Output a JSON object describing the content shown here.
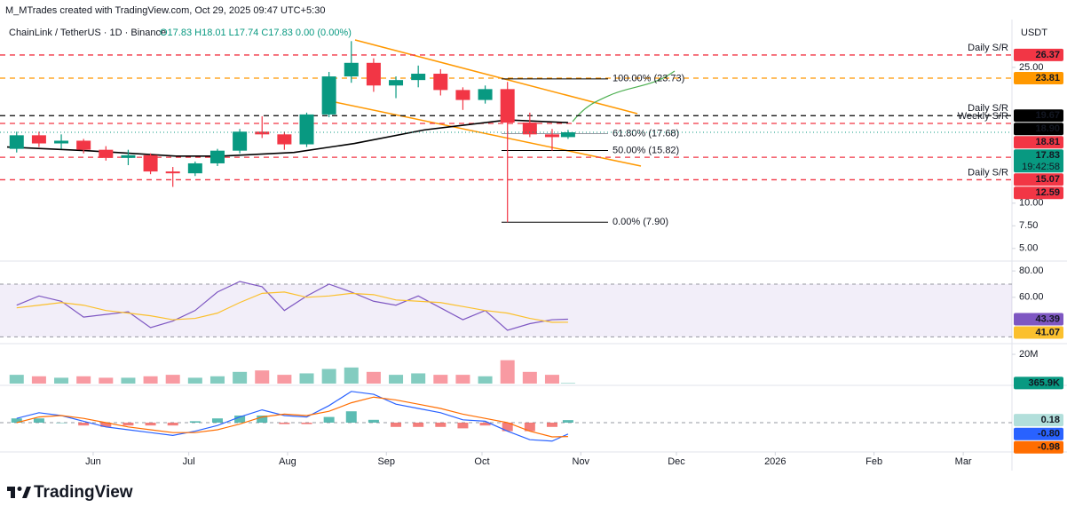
{
  "header": {
    "attribution": "M_MTrades created with TradingView.com, Oct 29, 2025 09:47 UTC+5:30",
    "symbol": "ChainLink / TetherUS · 1D · Binance",
    "ohlc": "O17.83 H18.01 L17.74 C17.83 0.00 (0.00%)",
    "currency": "USDT"
  },
  "footer": {
    "brand": "TradingView"
  },
  "chart_data": [
    {
      "type": "candlestick",
      "xlim": [
        0,
        315
      ],
      "xticks": [
        {
          "value": 27,
          "label": "Jun"
        },
        {
          "value": 57,
          "label": "Jul"
        },
        {
          "value": 88,
          "label": "Aug"
        },
        {
          "value": 119,
          "label": "Sep"
        },
        {
          "value": 149,
          "label": "Oct"
        },
        {
          "value": 180,
          "label": "Nov"
        },
        {
          "value": 210,
          "label": "Dec"
        },
        {
          "value": 241,
          "label": "2026"
        },
        {
          "value": 272,
          "label": "Feb"
        },
        {
          "value": 300,
          "label": "Mar"
        }
      ],
      "x": [
        3,
        10,
        17,
        24,
        31,
        38,
        45,
        52,
        59,
        66,
        73,
        80,
        87,
        94,
        101,
        108,
        115,
        122,
        129,
        136,
        143,
        150,
        157,
        164,
        171,
        176
      ],
      "open": [
        16.0,
        17.5,
        16.6,
        16.9,
        15.9,
        15.0,
        15.3,
        13.5,
        13.3,
        14.4,
        15.8,
        17.9,
        17.6,
        16.5,
        19.8,
        24.0,
        25.5,
        23.0,
        23.6,
        24.3,
        22.5,
        21.4,
        22.6,
        18.9,
        17.6,
        17.3
      ],
      "high": [
        17.9,
        17.9,
        17.6,
        17.1,
        16.3,
        15.9,
        15.5,
        14.0,
        14.6,
        16.0,
        18.2,
        19.6,
        17.9,
        20.0,
        24.5,
        27.9,
        26.0,
        24.0,
        25.2,
        24.8,
        22.8,
        23.0,
        23.4,
        20.0,
        18.2,
        18.1
      ],
      "low": [
        15.6,
        16.2,
        16.0,
        15.5,
        14.7,
        14.2,
        13.2,
        11.8,
        13.0,
        14.1,
        15.5,
        17.2,
        15.9,
        16.2,
        19.5,
        23.3,
        22.3,
        21.6,
        22.8,
        21.9,
        20.3,
        21.0,
        7.9,
        17.3,
        15.8,
        17.1
      ],
      "close": [
        17.5,
        16.6,
        16.9,
        15.9,
        15.0,
        15.3,
        13.5,
        13.3,
        14.4,
        15.8,
        17.9,
        17.6,
        16.5,
        19.8,
        24.0,
        25.5,
        23.0,
        23.6,
        24.3,
        22.5,
        21.4,
        22.6,
        18.9,
        17.6,
        17.3,
        17.83
      ],
      "countdown": "19:42:58",
      "up_color": "#089981",
      "down_color": "#f23645",
      "ylim": [
        4,
        29.5
      ],
      "yticks": [
        {
          "value": 5,
          "label": "5.00"
        },
        {
          "value": 7.5,
          "label": "7.50"
        },
        {
          "value": 10,
          "label": "10.00"
        },
        {
          "value": 25,
          "label": "25.00"
        }
      ],
      "moving_average": {
        "color": "#000000",
        "x": [
          0,
          25,
          53,
          67,
          90,
          109,
          131,
          157,
          176
        ],
        "values": [
          16.2,
          15.8,
          15.2,
          15.2,
          15.6,
          16.6,
          18.1,
          19.2,
          18.9
        ],
        "value_labels": [
          null,
          null,
          null,
          null,
          null,
          null,
          null,
          null,
          "18.90"
        ]
      },
      "levels": [
        {
          "label": "Daily S/R",
          "value": 26.37,
          "color": "#f23645"
        },
        {
          "value": 23.81,
          "color": "#ff9800"
        },
        {
          "label": "Daily S/R",
          "value": 19.67,
          "color": "#000000"
        },
        {
          "label": "Weekly S/R",
          "value": 18.81,
          "color": "#f23645"
        },
        {
          "value": 15.07,
          "color": "#f23645"
        },
        {
          "label": "Daily S/R",
          "value": 12.59,
          "color": "#f23645"
        }
      ],
      "fibonacci": [
        {
          "label": "100.00% (23.73)",
          "value": 23.73,
          "color": "#000000"
        },
        {
          "label": "61.80% (17.68)",
          "value": 17.68,
          "color": "#9598a1"
        },
        {
          "label": "50.00% (15.82)",
          "value": 15.82,
          "color": "#000000"
        },
        {
          "label": "0.00% (7.90)",
          "value": 7.9,
          "color": "#000000"
        }
      ]
    },
    {
      "type": "line",
      "ylim": [
        26.2,
        84.8
      ],
      "yticks": [
        {
          "value": 80,
          "label": "80.00"
        },
        {
          "value": 60,
          "label": "60.00"
        }
      ],
      "band": [
        30,
        70
      ],
      "band_color": "#7e57c2",
      "series": [
        {
          "color": "#7e57c2",
          "values": [
            54,
            61,
            57,
            45,
            47,
            49,
            37,
            42,
            50,
            64,
            72,
            68,
            50,
            61,
            70,
            64,
            57,
            54,
            61,
            52,
            43,
            50,
            35,
            40,
            43,
            43.39
          ]
        },
        {
          "color": "#fbc02d",
          "values": [
            52,
            54,
            56,
            54,
            50,
            48,
            46,
            43,
            44,
            48,
            56,
            63,
            64,
            60,
            61,
            63,
            62,
            58,
            57,
            56,
            53,
            50,
            48,
            44,
            41,
            41.07
          ]
        }
      ]
    },
    {
      "type": "bar",
      "ylim": [
        0,
        25.5
      ],
      "yticks": [
        {
          "value": 20,
          "label": "20M"
        }
      ],
      "values": [
        6,
        5,
        4,
        5,
        4,
        4,
        5,
        6,
        4,
        5,
        8,
        9,
        6,
        7,
        10,
        11,
        8,
        6,
        7,
        6,
        6,
        5,
        16,
        8,
        6,
        0.3659
      ],
      "value_labels": [
        null,
        null,
        null,
        null,
        null,
        null,
        null,
        null,
        null,
        null,
        null,
        null,
        null,
        null,
        null,
        null,
        null,
        null,
        null,
        null,
        null,
        null,
        null,
        null,
        null,
        "365.9K"
      ],
      "up_color": "#089981",
      "down_color": "#f23645"
    },
    {
      "type": "line",
      "ylim": [
        -1.94,
        2.44
      ],
      "zero_line": true,
      "series": [
        {
          "color": "#2962ff",
          "values": [
            0.3,
            0.7,
            0.5,
            0.1,
            -0.3,
            -0.5,
            -0.7,
            -0.9,
            -0.6,
            -0.2,
            0.4,
            0.9,
            0.5,
            0.4,
            1.2,
            2.2,
            2.0,
            1.3,
            1.0,
            0.7,
            0.2,
            0.1,
            -0.6,
            -1.2,
            -1.3,
            -0.8
          ],
          "value_labels": [
            null,
            null,
            null,
            null,
            null,
            null,
            null,
            null,
            null,
            null,
            null,
            null,
            null,
            null,
            null,
            null,
            null,
            null,
            null,
            null,
            null,
            null,
            null,
            null,
            null,
            "-0.80"
          ]
        },
        {
          "color": "#ff6d00",
          "values": [
            0.0,
            0.4,
            0.5,
            0.3,
            0.0,
            -0.3,
            -0.5,
            -0.7,
            -0.7,
            -0.5,
            -0.1,
            0.4,
            0.6,
            0.5,
            0.8,
            1.4,
            1.8,
            1.6,
            1.3,
            1.0,
            0.6,
            0.3,
            0.0,
            -0.6,
            -1.0,
            -0.98
          ]
        }
      ],
      "histogram": {
        "up_color": "#26a69a",
        "down_color": "#ef5350",
        "values": [
          0.3,
          0.3,
          0.0,
          -0.2,
          -0.3,
          -0.2,
          -0.2,
          -0.2,
          0.1,
          0.3,
          0.5,
          0.5,
          -0.1,
          -0.1,
          0.4,
          0.8,
          0.2,
          -0.3,
          -0.3,
          -0.3,
          -0.4,
          -0.2,
          -0.6,
          -0.6,
          -0.3,
          0.18
        ]
      }
    }
  ]
}
